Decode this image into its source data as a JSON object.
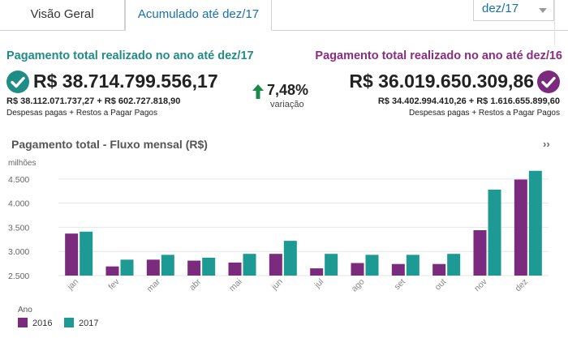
{
  "tabs": [
    {
      "label": "Visão Geral"
    },
    {
      "label": "Acumulado até dez/17"
    }
  ],
  "period_select": {
    "value": "dez/17"
  },
  "current": {
    "title": "Pagamento total realizado no ano até dez/17",
    "total": "R$ 38.714.799.556,17",
    "breakdown": "R$ 38.112.071.737,27 + R$ 602.727.818,90",
    "breakdown_label": "Despesas pagas + Restos a Pagar Pagos",
    "color": "#1f8c85"
  },
  "previous": {
    "title": "Pagamento total realizado no ano até dez/16",
    "total": "R$ 36.019.650.309,86",
    "breakdown": "R$ 34.402.994.410,26 + R$ 1.616.655.899,60",
    "breakdown_label": "Despesas pagas + Restos a Pagar Pagos",
    "color": "#7a2b7d"
  },
  "variation": {
    "value": "7,48%",
    "label": "variação",
    "direction": "up",
    "icon": "arrow-up-icon",
    "color": "#1a8a4a"
  },
  "chart_data": {
    "type": "bar",
    "title": "Pagamento total - Fluxo mensal (R$)",
    "ylabel": "milhões",
    "categories": [
      "jan",
      "fev",
      "mar",
      "abr",
      "mai",
      "jun",
      "jul",
      "ago",
      "set",
      "out",
      "nov",
      "dez"
    ],
    "series": [
      {
        "name": "2016",
        "color": "#7a2b7d",
        "values": [
          3370,
          2690,
          2830,
          2810,
          2770,
          2950,
          2650,
          2760,
          2740,
          2740,
          3440,
          4490
        ]
      },
      {
        "name": "2017",
        "color": "#1e9a94",
        "values": [
          3410,
          2830,
          2930,
          2870,
          2950,
          3220,
          2950,
          2930,
          2930,
          2950,
          4280,
          4670
        ]
      }
    ],
    "ylim": [
      2500,
      4800
    ],
    "yticks": [
      "2.500",
      "3.000",
      "3.500",
      "4.000",
      "4.500"
    ],
    "ytick_values": [
      2500,
      3000,
      3500,
      4000,
      4500
    ],
    "legend": {
      "title": "Ano",
      "position": "bottom-left"
    },
    "grid": true
  },
  "chart_more": "››"
}
